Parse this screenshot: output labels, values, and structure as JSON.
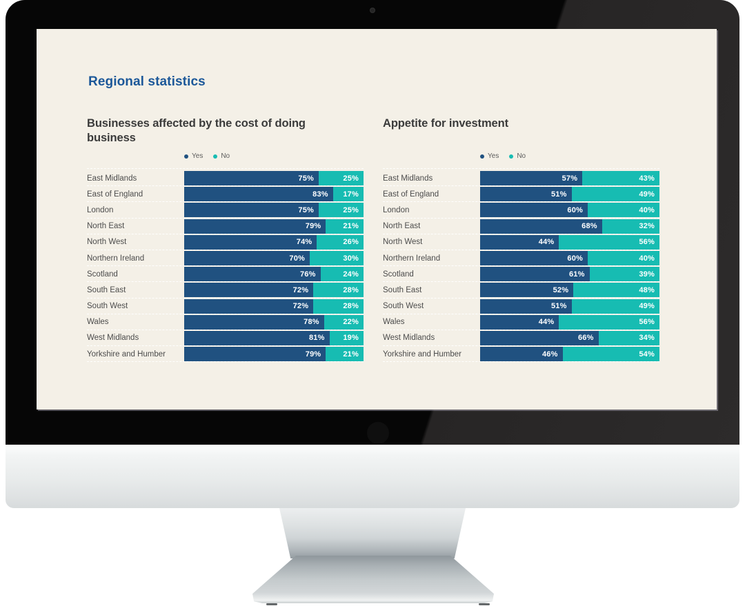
{
  "screen": {
    "title": "Regional statistics",
    "title_color": "#1c5899",
    "background_color": "#f4f0e7"
  },
  "colors": {
    "yes": "#205180",
    "no": "#17bcb2"
  },
  "chart_data": [
    {
      "type": "bar",
      "stacked": true,
      "orientation": "horizontal",
      "title": "Businesses affected by the cost of doing business",
      "unit": "%",
      "xlim": [
        0,
        100
      ],
      "value_labels": "inside-right-of-segment",
      "legend_position": "top",
      "categories": [
        "East Midlands",
        "East of England",
        "London",
        "North East",
        "North West",
        "Northern Ireland",
        "Scotland",
        "South East",
        "South West",
        "Wales",
        "West Midlands",
        "Yorkshire and Humber"
      ],
      "series": [
        {
          "name": "Yes",
          "color": "#205180",
          "values": [
            75,
            83,
            75,
            79,
            74,
            70,
            76,
            72,
            72,
            78,
            81,
            79
          ]
        },
        {
          "name": "No",
          "color": "#17bcb2",
          "values": [
            25,
            17,
            25,
            21,
            26,
            30,
            24,
            28,
            28,
            22,
            19,
            21
          ]
        }
      ]
    },
    {
      "type": "bar",
      "stacked": true,
      "orientation": "horizontal",
      "title": "Appetite for investment",
      "unit": "%",
      "xlim": [
        0,
        100
      ],
      "value_labels": "inside-right-of-segment",
      "legend_position": "top",
      "categories": [
        "East Midlands",
        "East of England",
        "London",
        "North East",
        "North West",
        "Northern Ireland",
        "Scotland",
        "South East",
        "South West",
        "Wales",
        "West Midlands",
        "Yorkshire and Humber"
      ],
      "series": [
        {
          "name": "Yes",
          "color": "#205180",
          "values": [
            57,
            51,
            60,
            68,
            44,
            60,
            61,
            52,
            51,
            44,
            66,
            46
          ]
        },
        {
          "name": "No",
          "color": "#17bcb2",
          "values": [
            43,
            49,
            40,
            32,
            56,
            40,
            39,
            48,
            49,
            56,
            34,
            54
          ]
        }
      ]
    }
  ]
}
